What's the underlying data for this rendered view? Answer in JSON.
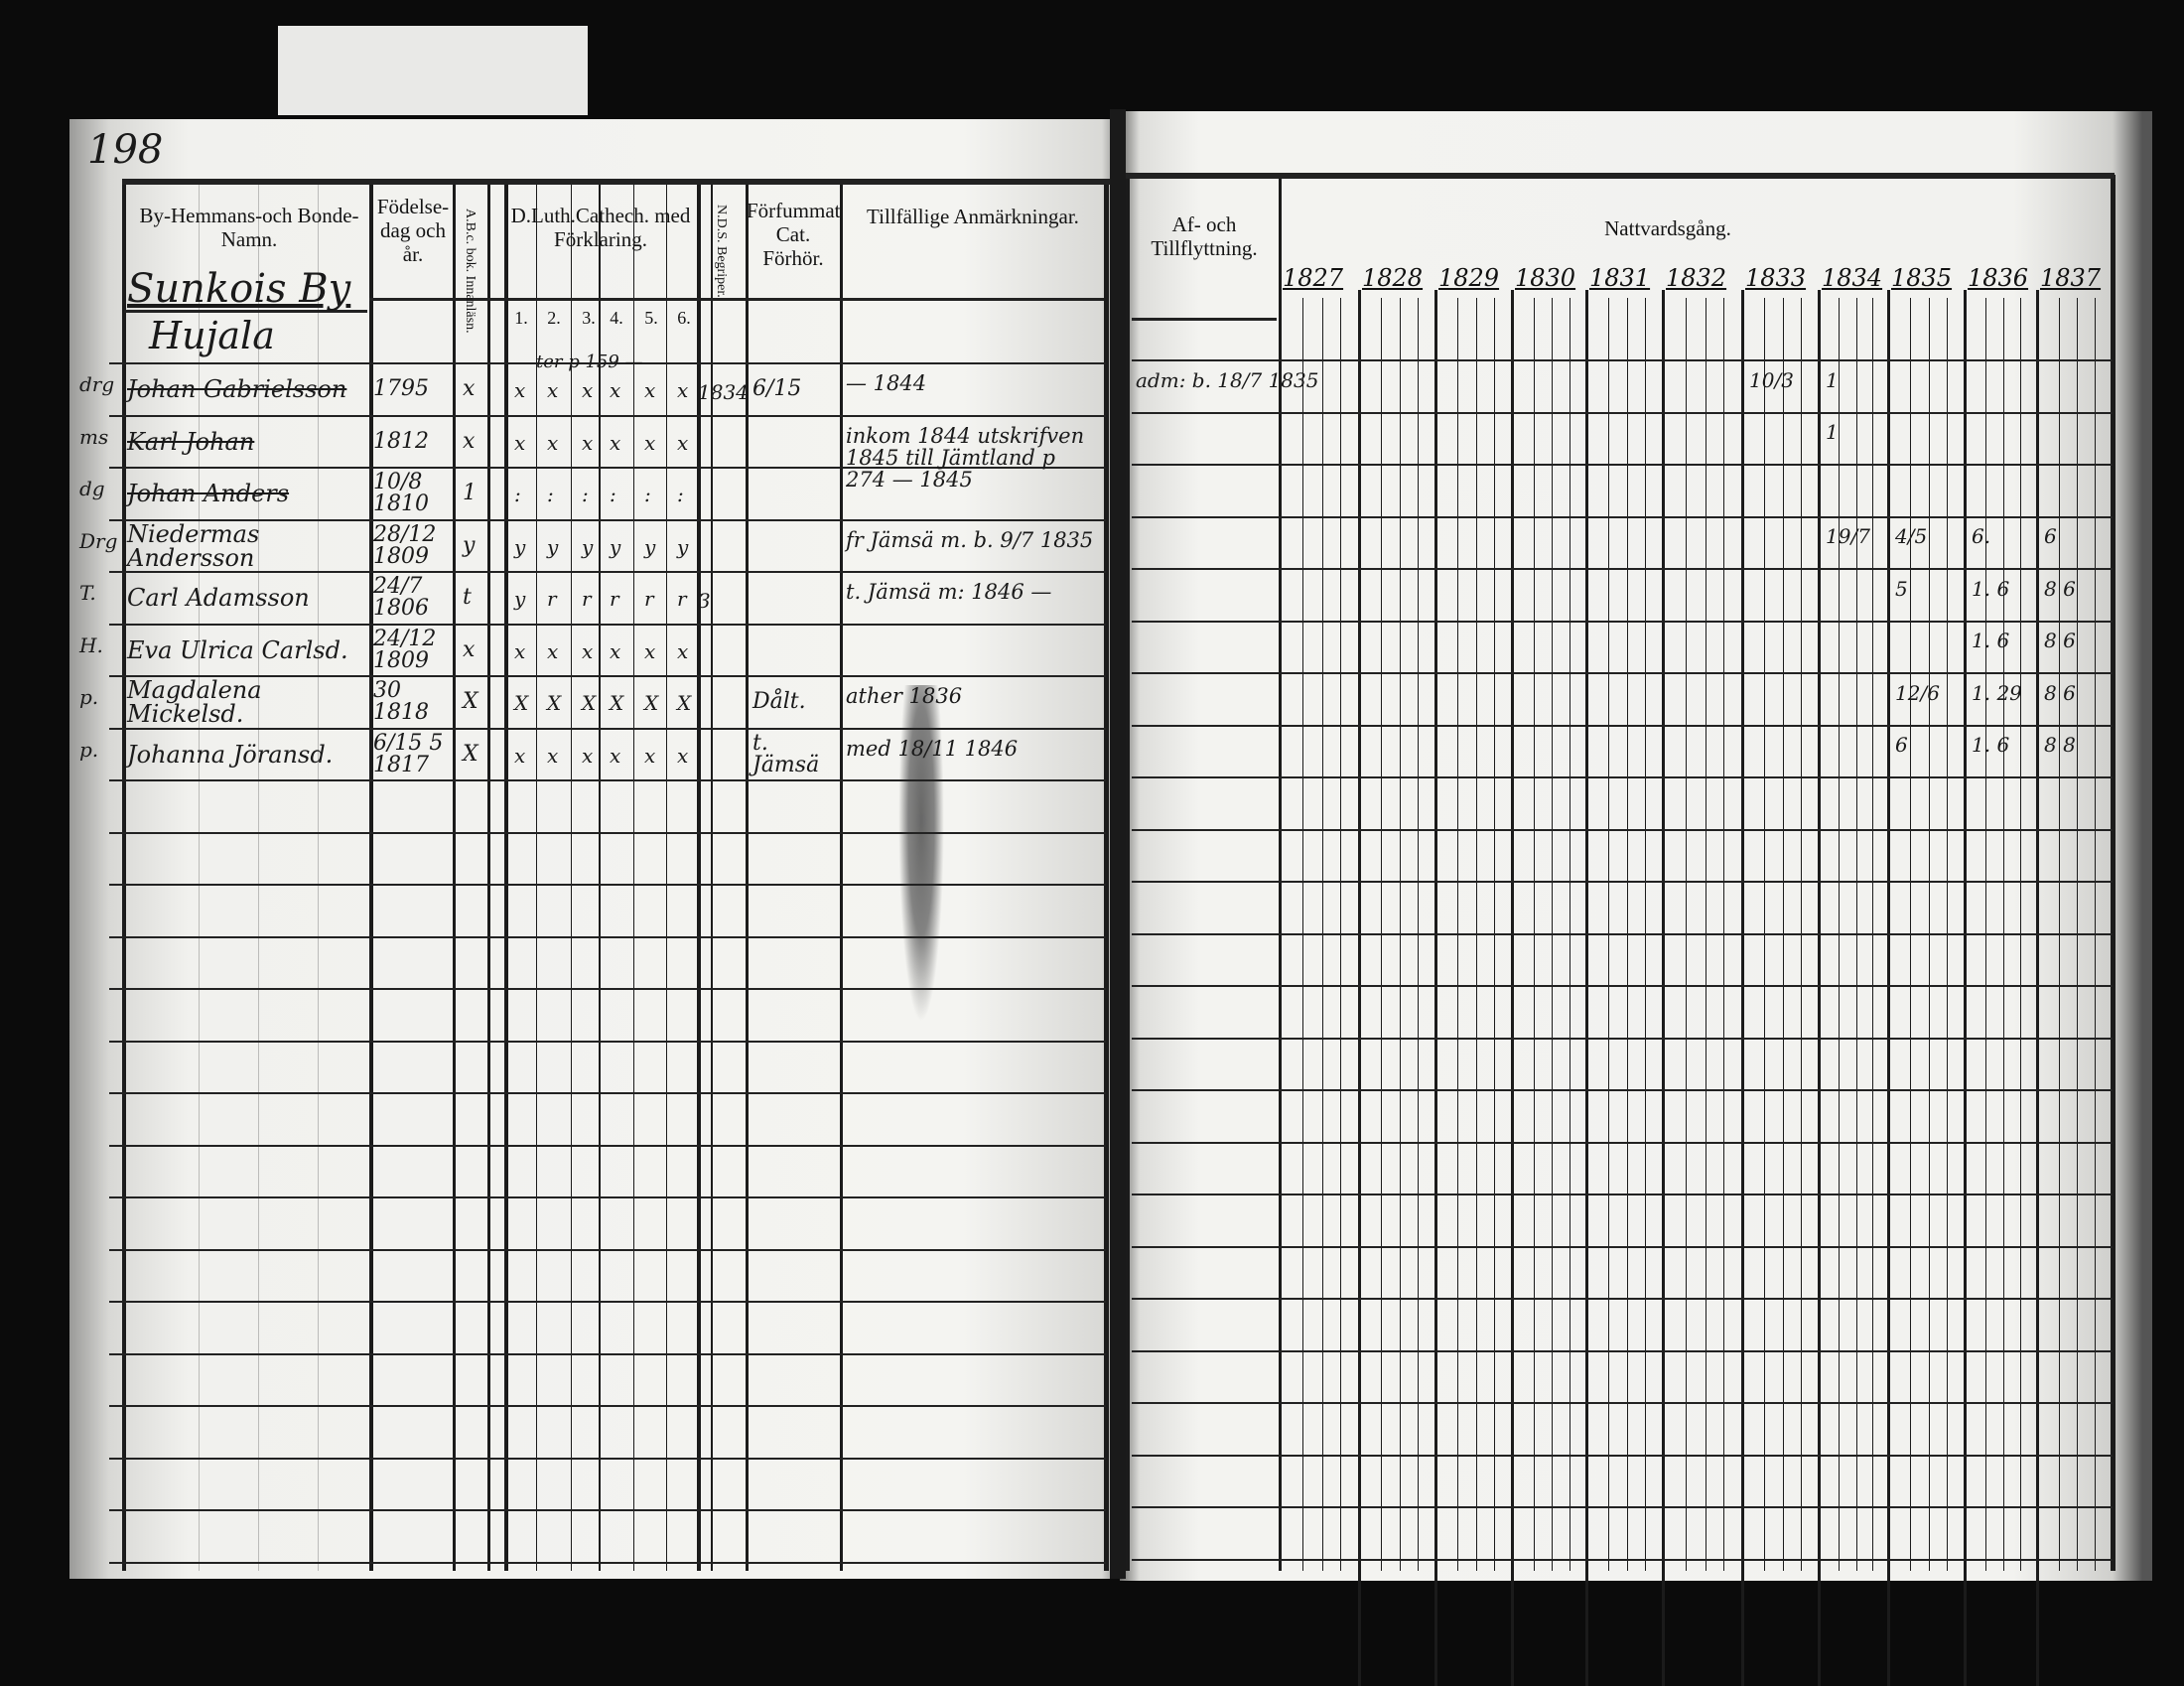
{
  "page_number": "198",
  "left_page": {
    "headers": {
      "name": "By-Hemmans-och Bonde-Namn.",
      "birth": "Födelse-dag och år.",
      "abc": "A.B.c. bok. Innanläsn.",
      "catechism": "D.Luth.Cathech. med Förklaring.",
      "catechism_parts": [
        "1.",
        "2.",
        "3.",
        "4.",
        "5.",
        "6."
      ],
      "nds": "N.D.S. Begriper.",
      "forsummat": "Förfummat Cat. Förhör.",
      "remarks": "Tillfällige Anmärkningar."
    },
    "village": "Sunkois By",
    "farm": "Hujala",
    "rows": [
      {
        "prefix": "drg",
        "name": "Johan Gabrielsson",
        "struck": true,
        "birth": "1795",
        "abc": "x",
        "cat": [
          "x",
          "x",
          "x",
          "x",
          "x",
          "x"
        ],
        "cat_note": "ter p 159 —",
        "nds": "1834",
        "forsummat": "6/15",
        "remarks": "— 1844"
      },
      {
        "prefix": "ms",
        "name": "Karl Johan",
        "struck": true,
        "birth": "1812",
        "abc": "x",
        "cat": [
          "x",
          "x",
          "x",
          "x",
          "x",
          "x"
        ],
        "cat_note": "",
        "nds": "",
        "forsummat": "",
        "remarks": "inkom 1844 utskrifven 1845 till Jämtland p 274 — 1845"
      },
      {
        "prefix": "dg",
        "name": "Johan Anders",
        "struck": true,
        "birth": "10/8 1810",
        "abc": "1",
        "cat": [
          ":",
          ":",
          ":",
          ":",
          ":",
          ":"
        ],
        "cat_note": "",
        "nds": "",
        "forsummat": "",
        "remarks": ""
      },
      {
        "prefix": "Drg",
        "name": "Niedermas Andersson",
        "struck": false,
        "birth": "28/12 1809",
        "abc": "y",
        "cat": [
          "y",
          "y",
          "y",
          "y",
          "y",
          "y"
        ],
        "cat_note": "",
        "nds": "",
        "forsummat": "",
        "remarks": "fr Jämsä m. b. 9/7 1835"
      },
      {
        "prefix": "T.",
        "name": "Carl Adamsson",
        "struck": false,
        "birth": "24/7 1806",
        "abc": "t",
        "cat": [
          "y",
          "r",
          "r",
          "r",
          "r",
          "r"
        ],
        "cat_note": "",
        "nds": "3",
        "forsummat": "",
        "remarks": "t. Jämsä m: 1846 —"
      },
      {
        "prefix": "H.",
        "name": "Eva Ulrica Carlsd.",
        "struck": false,
        "birth": "24/12 1809",
        "abc": "x",
        "cat": [
          "x",
          "x",
          "x",
          "x",
          "x",
          "x"
        ],
        "cat_note": "",
        "nds": "",
        "forsummat": "",
        "remarks": ""
      },
      {
        "prefix": "p.",
        "name": "Magdalena Mickelsd.",
        "struck": false,
        "birth": "30 1818",
        "abc": "X",
        "cat": [
          "X",
          "X",
          "X",
          "X",
          "X",
          "X"
        ],
        "cat_note": "",
        "nds": "",
        "forsummat": "Dålt.",
        "remarks": "ather 1836"
      },
      {
        "prefix": "p.",
        "name": "Johanna Jöransd.",
        "struck": false,
        "birth": "6/15 5 1817",
        "abc": "X",
        "cat": [
          "x",
          "x",
          "x",
          "x",
          "x",
          "x"
        ],
        "cat_note": "",
        "nds": "",
        "forsummat": "t. Jämsä",
        "remarks": "med 18/11 1846"
      }
    ]
  },
  "right_page": {
    "headers": {
      "moving": "Af- och Tillflyttning.",
      "communion": "Nattvardsgång."
    },
    "years": [
      "1827",
      "1828",
      "1829",
      "1830",
      "1831",
      "1832",
      "1833",
      "1834",
      "1835",
      "1836",
      "1837"
    ],
    "rows": [
      {
        "moving": "",
        "marks": []
      },
      {
        "moving": "adm: b. 18/7 1835",
        "marks": [
          {
            "year": "1833",
            "text": "10/3"
          },
          {
            "year": "1834",
            "text": "1"
          }
        ]
      },
      {
        "moving": "",
        "marks": [
          {
            "year": "1834",
            "text": "1"
          }
        ]
      },
      {
        "moving": "",
        "marks": []
      },
      {
        "moving": "",
        "marks": [
          {
            "year": "1834",
            "text": "19/7"
          },
          {
            "year": "1835",
            "text": "4/5"
          },
          {
            "year": "1836",
            "text": "6."
          },
          {
            "year": "1837",
            "text": "6"
          }
        ]
      },
      {
        "moving": "",
        "marks": [
          {
            "year": "1835",
            "text": "5"
          },
          {
            "year": "1836",
            "text": "1. 6"
          },
          {
            "year": "1837",
            "text": "8 6"
          }
        ]
      },
      {
        "moving": "",
        "marks": [
          {
            "year": "1836",
            "text": "1. 6"
          },
          {
            "year": "1837",
            "text": "8 6"
          }
        ]
      },
      {
        "moving": "",
        "marks": [
          {
            "year": "1835",
            "text": "12/6"
          },
          {
            "year": "1836",
            "text": "1. 29"
          },
          {
            "year": "1837",
            "text": "8 6"
          }
        ]
      },
      {
        "moving": "",
        "marks": [
          {
            "year": "1835",
            "text": "6"
          },
          {
            "year": "1836",
            "text": "1. 6"
          },
          {
            "year": "1837",
            "text": "8 8"
          }
        ]
      }
    ]
  },
  "colors": {
    "paper": "#f2f2ef",
    "ink": "#1a1a1a",
    "background": "#0b0b0b"
  }
}
